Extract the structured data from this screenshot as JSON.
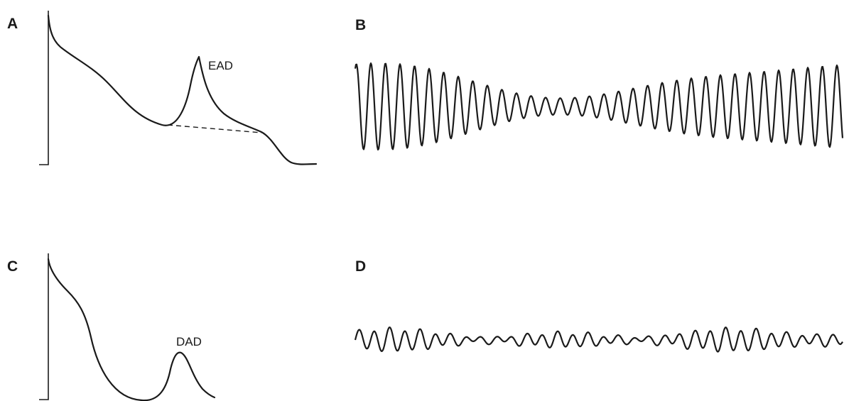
{
  "panels": {
    "a": {
      "label": "A",
      "annotation": "EAD"
    },
    "b": {
      "label": "B"
    },
    "c": {
      "label": "C",
      "annotation": "DAD"
    },
    "d": {
      "label": "D"
    }
  },
  "colors": {
    "ink": "#1a1a1a",
    "background": "#ffffff"
  }
}
